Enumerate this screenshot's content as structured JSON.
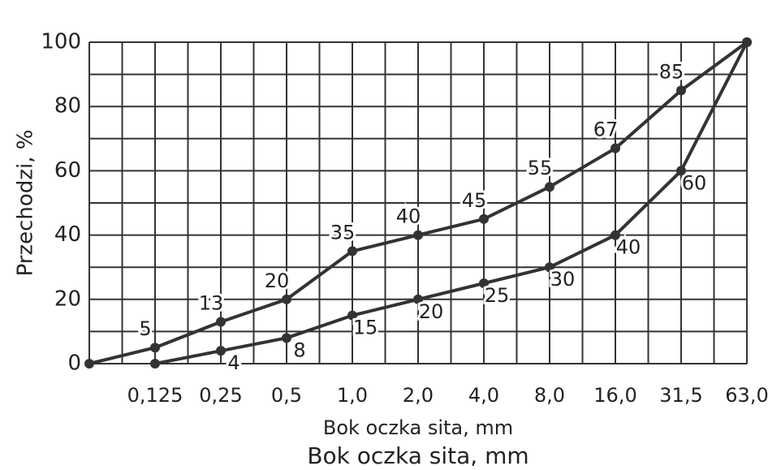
{
  "chart_data": {
    "type": "line",
    "ylabel": "Przechodzi, %",
    "xlabel": "Bok oczka sita, mm",
    "caption": "Bok oczka sita, mm",
    "categories": [
      null,
      "0,125",
      "0,25",
      "0,5",
      "1,0",
      "2,0",
      "4,0",
      "8,0",
      "16,0",
      "31,5",
      "63,0"
    ],
    "series": [
      {
        "color": "#333333",
        "values": [
          0,
          5,
          13,
          20,
          35,
          40,
          45,
          55,
          67,
          85,
          100
        ],
        "value_labels": [
          null,
          "5",
          "13",
          "20",
          "35",
          "40",
          "45",
          "55",
          "67",
          "85",
          null
        ]
      },
      {
        "color": "#333333",
        "values": [
          null,
          0,
          4,
          8,
          15,
          20,
          25,
          30,
          40,
          60,
          100
        ],
        "value_labels": [
          null,
          null,
          "4",
          "8",
          "15",
          "20",
          "25",
          "30",
          "40",
          "60",
          null
        ]
      }
    ],
    "ylim": [
      0,
      100
    ],
    "yticks": [
      0,
      20,
      40,
      60,
      80,
      100
    ],
    "y_minor_ticks": [
      10,
      30,
      50,
      70,
      90
    ],
    "grid": true
  }
}
